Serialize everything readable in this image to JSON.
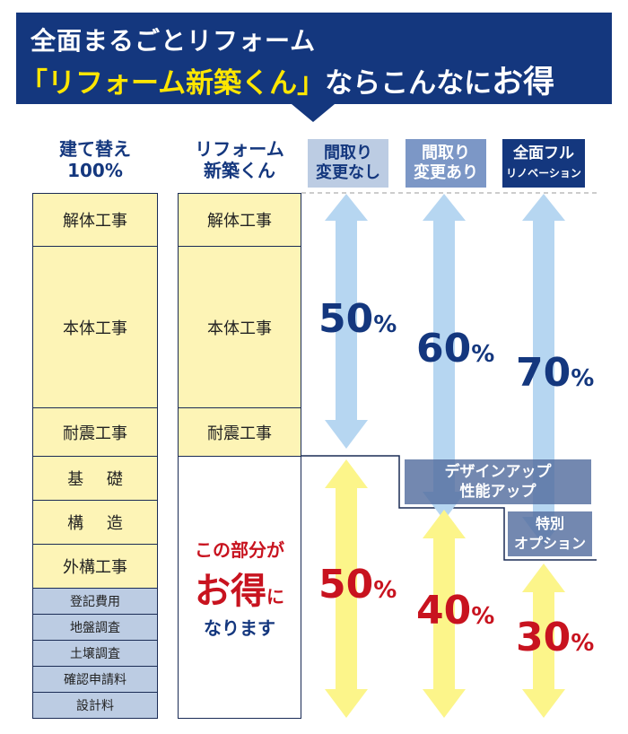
{
  "header": {
    "line1": "全面まるごとリフォーム",
    "line2_quote": "「リフォーム新築くん」",
    "line2_mid": "ならこんなに",
    "line2_end": "お得"
  },
  "columns": {
    "rebuild_l1": "建て替え",
    "rebuild_l2": "100%",
    "reform_l1": "リフォーム",
    "reform_l2": "新築くん",
    "plan1_l1": "間取り",
    "plan1_l2": "変更なし",
    "plan2_l1": "間取り",
    "plan2_l2": "変更あり",
    "plan3_l1": "全面フル",
    "plan3_l2": "リノベーション"
  },
  "rebuild_items": [
    "解体工事",
    "本体工事",
    "耐震工事",
    "基 礎",
    "構 造",
    "外構工事"
  ],
  "rebuild_small_items": [
    "登記費用",
    "地盤調査",
    "土壌調査",
    "確認申請料",
    "設計料"
  ],
  "reform_items": [
    "解体工事",
    "本体工事",
    "耐震工事"
  ],
  "savings": {
    "l1": "この部分が",
    "l2a": "お得",
    "l2b": "に",
    "l3": "なります"
  },
  "cost_percent": {
    "plan1": "50",
    "plan2": "60",
    "plan3": "70",
    "sign": "%"
  },
  "save_percent": {
    "plan1": "50",
    "plan2": "40",
    "plan3": "30",
    "sign": "%"
  },
  "extras": {
    "design_l1": "デザインアップ",
    "design_l2": "性能アップ",
    "option_l1": "特別",
    "option_l2": "オプション"
  },
  "colors": {
    "navy": "#14377e",
    "red": "#c8131f",
    "yellow": "#fdf4b6",
    "light_blue": "#bccce3",
    "arrow_blue": "#b6d6f1",
    "arrow_yellow": "#fcf58a"
  }
}
